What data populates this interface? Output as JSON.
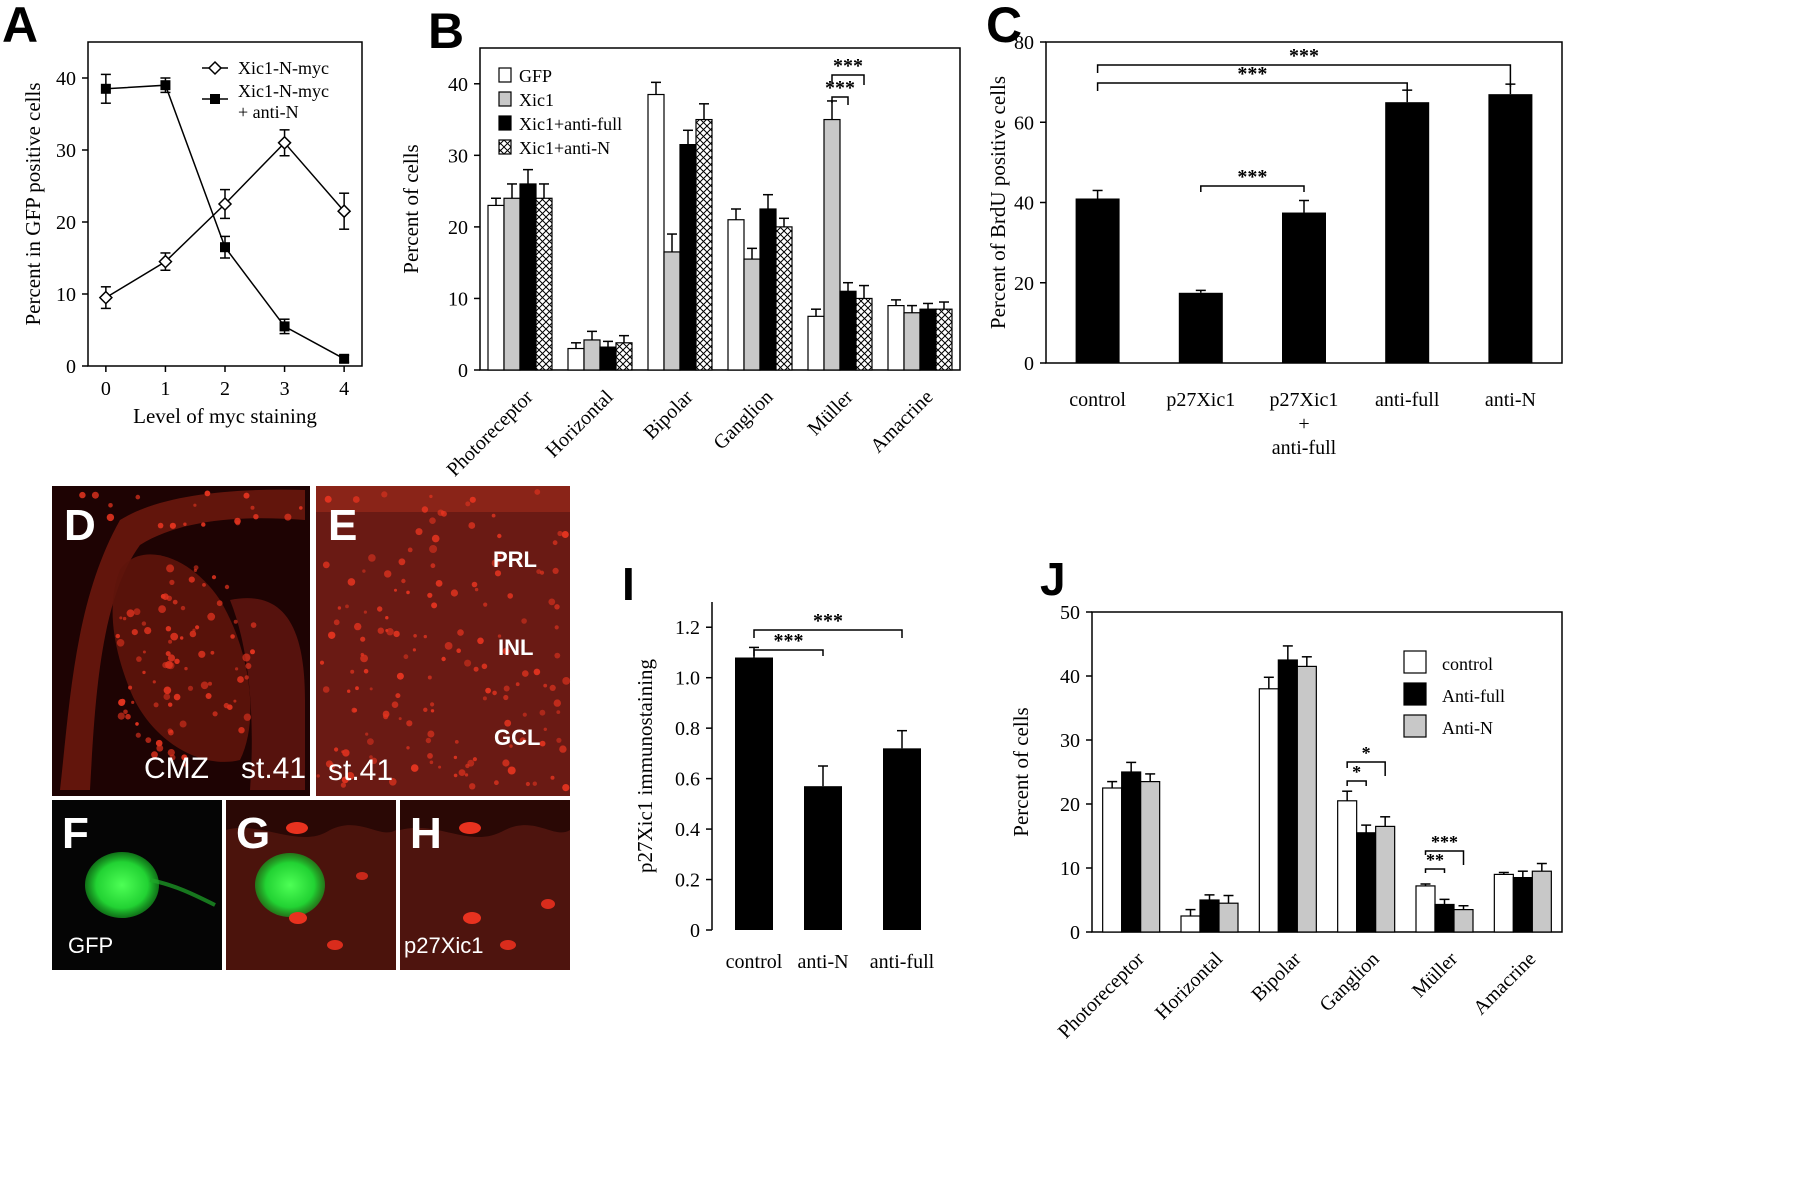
{
  "panels": {
    "A": "A",
    "B": "B",
    "C": "C",
    "D": "D",
    "E": "E",
    "F": "F",
    "G": "G",
    "H": "H",
    "I": "I",
    "J": "J"
  },
  "significance": {
    "p001": "***",
    "p01": "**",
    "p05": "*"
  },
  "micrographs": {
    "D": {
      "labels": [
        "CMZ",
        "st.41"
      ]
    },
    "E": {
      "labels": [
        "PRL",
        "INL",
        "GCL",
        "st.41"
      ]
    },
    "F": {
      "labels": [
        "GFP"
      ]
    },
    "G": {
      "labels": []
    },
    "H": {
      "labels": [
        "p27Xic1"
      ]
    }
  },
  "colors": {
    "black": "#000000",
    "grey": "#c8c8c8",
    "white": "#ffffff",
    "micro_red": "#e0331f",
    "micro_green": "#2ee63c"
  },
  "chart_data": [
    {
      "id": "A",
      "type": "line",
      "xlabel": "Level of myc staining",
      "ylabel": "Percent in GFP positive cells",
      "x": [
        0,
        1,
        2,
        3,
        4
      ],
      "xlim": [
        -0.3,
        4.3
      ],
      "ylim": [
        0,
        45
      ],
      "yticks": [
        0,
        10,
        20,
        30,
        40
      ],
      "series": [
        {
          "name": "Xic1-N-myc",
          "marker": "open-diamond",
          "values": [
            9.5,
            14.5,
            22.5,
            31,
            21.5
          ],
          "errors": [
            1.5,
            1.2,
            2,
            1.8,
            2.5
          ]
        },
        {
          "name": "Xic1-N-myc + anti-N",
          "legend_lines": [
            "Xic1-N-myc",
            "+ anti-N"
          ],
          "marker": "filled-square",
          "values": [
            38.5,
            39,
            16.5,
            5.5,
            1
          ],
          "errors": [
            2,
            1,
            1.5,
            1,
            0.5
          ]
        }
      ]
    },
    {
      "id": "B",
      "type": "bar",
      "ylabel": "Percent of cells",
      "ylim": [
        0,
        45
      ],
      "yticks": [
        0,
        10,
        20,
        30,
        40
      ],
      "categories": [
        "Photoreceptor",
        "Horizontal",
        "Bipolar",
        "Ganglion",
        "Müller",
        "Amacrine"
      ],
      "series": [
        {
          "name": "GFP",
          "fill": "white",
          "values": [
            23,
            3,
            38.5,
            21,
            7.5,
            9
          ],
          "errors": [
            1,
            0.8,
            1.7,
            1.5,
            1,
            0.8
          ]
        },
        {
          "name": "Xic1",
          "fill": "grey",
          "values": [
            24,
            4.2,
            16.5,
            15.5,
            35,
            8
          ],
          "errors": [
            2,
            1.2,
            2.5,
            1.5,
            2.6,
            1
          ]
        },
        {
          "name": "Xic1+anti-full",
          "fill": "black",
          "values": [
            26,
            3.2,
            31.5,
            22.5,
            11,
            8.5
          ],
          "errors": [
            2,
            0.8,
            2,
            2,
            1.2,
            0.8
          ]
        },
        {
          "name": "Xic1+anti-N",
          "fill": "hatch",
          "values": [
            24,
            3.8,
            35,
            20,
            10,
            8.5
          ],
          "errors": [
            2,
            1,
            2.2,
            1.2,
            1.8,
            1
          ]
        }
      ],
      "annotations": [
        {
          "text": "***"
        },
        {
          "text": "***"
        }
      ]
    },
    {
      "id": "C",
      "type": "bar",
      "ylabel": "Percent of BrdU positive cells",
      "ylim": [
        0,
        80
      ],
      "yticks": [
        0,
        20,
        40,
        60,
        80
      ],
      "categories": [
        "control",
        "p27Xic1",
        "p27Xic1 + anti-full",
        "anti-full",
        "anti-N"
      ],
      "category_lines": [
        [
          "control"
        ],
        [
          "p27Xic1"
        ],
        [
          "p27Xic1",
          "+",
          "anti-full"
        ],
        [
          "anti-full"
        ],
        [
          "anti-N"
        ]
      ],
      "values": [
        41,
        17.5,
        37.5,
        65,
        67
      ],
      "errors": [
        2,
        0.6,
        3,
        3,
        2.5
      ],
      "annotations": [
        {
          "text": "***"
        },
        {
          "text": "***"
        },
        {
          "text": "***"
        }
      ]
    },
    {
      "id": "I",
      "type": "bar",
      "ylabel": "p27Xic1 immunostaining",
      "ylim": [
        0,
        1.3
      ],
      "yticks": [
        "0",
        "0.2",
        "0.4",
        "0.6",
        "0.8",
        "1.0",
        "1.2"
      ],
      "categories": [
        "control",
        "anti-N",
        "anti-full"
      ],
      "values": [
        1.08,
        0.57,
        0.72
      ],
      "errors": [
        0.04,
        0.08,
        0.07
      ],
      "annotations": [
        {
          "text": "***"
        },
        {
          "text": "***"
        }
      ]
    },
    {
      "id": "J",
      "type": "bar",
      "ylabel": "Percent of cells",
      "ylim": [
        0,
        50
      ],
      "yticks": [
        0,
        10,
        20,
        30,
        40,
        50
      ],
      "categories": [
        "Photoreceptor",
        "Horizontal",
        "Bipolar",
        "Ganglion",
        "Müller",
        "Amacrine"
      ],
      "series": [
        {
          "name": "control",
          "fill": "white",
          "values": [
            22.5,
            2.5,
            38,
            20.5,
            7.2,
            9
          ],
          "errors": [
            1,
            1,
            1.8,
            1.5,
            0.3,
            0.3
          ]
        },
        {
          "name": "Anti-full",
          "fill": "black",
          "values": [
            25,
            5,
            42.5,
            15.5,
            4.3,
            8.5
          ],
          "errors": [
            1.5,
            0.8,
            2.2,
            1.2,
            0.8,
            1
          ]
        },
        {
          "name": "Anti-N",
          "fill": "grey",
          "values": [
            23.5,
            4.5,
            41.5,
            16.5,
            3.5,
            9.5
          ],
          "errors": [
            1.2,
            1.2,
            1.5,
            1.5,
            0.6,
            1.2
          ]
        }
      ],
      "annotations": [
        {
          "text": "*"
        },
        {
          "text": "*"
        },
        {
          "text": "**"
        },
        {
          "text": "***"
        }
      ]
    }
  ]
}
